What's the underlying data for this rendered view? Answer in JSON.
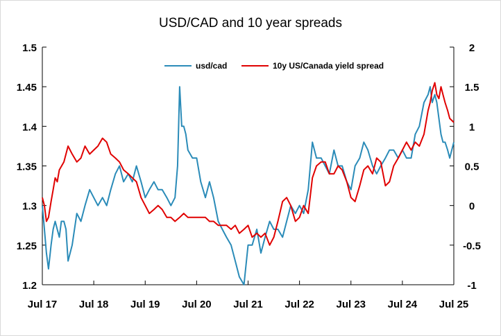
{
  "chart_data": {
    "type": "line",
    "title": "USD/CAD and 10 year spreads",
    "xlabel": "",
    "ylabel": "",
    "x_ticks": [
      "Jul 17",
      "Jul 18",
      "Jul 19",
      "Jul 20",
      "Jul 21",
      "Jul 22",
      "Jul 23",
      "Jul 24",
      "Jul 25"
    ],
    "x_range": [
      2017.5,
      2025.5
    ],
    "y_left": {
      "range": [
        1.2,
        1.5
      ],
      "ticks": [
        "1.2",
        "1.25",
        "1.3",
        "1.35",
        "1.4",
        "1.45",
        "1.5"
      ]
    },
    "y_right": {
      "range": [
        -1,
        2
      ],
      "ticks": [
        "-1",
        "-0.5",
        "0",
        "0.5",
        "1",
        "1.5",
        "2"
      ]
    },
    "grid": false,
    "legend_position": "top",
    "series": [
      {
        "name": "usd/cad",
        "axis": "left",
        "color": "#2a8bb8",
        "x": [
          2017.5,
          2017.54,
          2017.58,
          2017.62,
          2017.67,
          2017.71,
          2017.75,
          2017.79,
          2017.83,
          2017.87,
          2017.92,
          2017.96,
          2018.0,
          2018.08,
          2018.17,
          2018.25,
          2018.33,
          2018.42,
          2018.5,
          2018.58,
          2018.67,
          2018.75,
          2018.83,
          2018.92,
          2019.0,
          2019.08,
          2019.17,
          2019.25,
          2019.33,
          2019.42,
          2019.5,
          2019.58,
          2019.67,
          2019.75,
          2019.83,
          2019.92,
          2020.0,
          2020.08,
          2020.13,
          2020.17,
          2020.21,
          2020.25,
          2020.29,
          2020.33,
          2020.42,
          2020.5,
          2020.58,
          2020.67,
          2020.75,
          2020.83,
          2020.92,
          2021.0,
          2021.08,
          2021.17,
          2021.25,
          2021.33,
          2021.42,
          2021.5,
          2021.58,
          2021.67,
          2021.75,
          2021.83,
          2021.92,
          2022.0,
          2022.08,
          2022.17,
          2022.25,
          2022.33,
          2022.42,
          2022.5,
          2022.58,
          2022.67,
          2022.75,
          2022.83,
          2022.92,
          2023.0,
          2023.08,
          2023.17,
          2023.25,
          2023.33,
          2023.42,
          2023.5,
          2023.58,
          2023.67,
          2023.75,
          2023.83,
          2023.92,
          2024.0,
          2024.08,
          2024.17,
          2024.25,
          2024.33,
          2024.42,
          2024.5,
          2024.58,
          2024.67,
          2024.75,
          2024.83,
          2024.92,
          2025.0,
          2025.04,
          2025.08,
          2025.13,
          2025.17,
          2025.21,
          2025.25,
          2025.29,
          2025.33,
          2025.38,
          2025.42,
          2025.5
        ],
        "y": [
          1.3,
          1.27,
          1.24,
          1.22,
          1.25,
          1.27,
          1.28,
          1.27,
          1.26,
          1.28,
          1.28,
          1.27,
          1.23,
          1.25,
          1.29,
          1.28,
          1.3,
          1.32,
          1.31,
          1.3,
          1.31,
          1.3,
          1.32,
          1.34,
          1.35,
          1.33,
          1.34,
          1.33,
          1.35,
          1.33,
          1.31,
          1.32,
          1.33,
          1.32,
          1.32,
          1.31,
          1.3,
          1.31,
          1.35,
          1.45,
          1.4,
          1.4,
          1.39,
          1.37,
          1.36,
          1.36,
          1.33,
          1.31,
          1.33,
          1.31,
          1.28,
          1.27,
          1.26,
          1.25,
          1.23,
          1.21,
          1.2,
          1.25,
          1.25,
          1.27,
          1.24,
          1.26,
          1.28,
          1.27,
          1.27,
          1.26,
          1.28,
          1.3,
          1.29,
          1.3,
          1.29,
          1.32,
          1.38,
          1.36,
          1.36,
          1.35,
          1.34,
          1.37,
          1.35,
          1.35,
          1.33,
          1.32,
          1.35,
          1.36,
          1.38,
          1.37,
          1.35,
          1.34,
          1.35,
          1.36,
          1.37,
          1.37,
          1.36,
          1.37,
          1.36,
          1.36,
          1.39,
          1.4,
          1.43,
          1.44,
          1.45,
          1.43,
          1.44,
          1.43,
          1.41,
          1.39,
          1.38,
          1.38,
          1.37,
          1.36,
          1.38
        ]
      },
      {
        "name": "10y US/Canada yield spread",
        "axis": "right",
        "color": "#e00000",
        "x": [
          2017.5,
          2017.54,
          2017.58,
          2017.62,
          2017.67,
          2017.71,
          2017.75,
          2017.79,
          2017.83,
          2017.92,
          2018.0,
          2018.08,
          2018.17,
          2018.25,
          2018.33,
          2018.42,
          2018.5,
          2018.58,
          2018.67,
          2018.75,
          2018.83,
          2018.92,
          2019.0,
          2019.08,
          2019.17,
          2019.25,
          2019.33,
          2019.42,
          2019.5,
          2019.58,
          2019.67,
          2019.75,
          2019.83,
          2019.92,
          2020.0,
          2020.08,
          2020.17,
          2020.25,
          2020.33,
          2020.42,
          2020.5,
          2020.58,
          2020.67,
          2020.75,
          2020.83,
          2020.92,
          2021.0,
          2021.08,
          2021.17,
          2021.25,
          2021.33,
          2021.42,
          2021.5,
          2021.58,
          2021.67,
          2021.75,
          2021.83,
          2021.92,
          2022.0,
          2022.08,
          2022.17,
          2022.25,
          2022.33,
          2022.42,
          2022.5,
          2022.58,
          2022.67,
          2022.75,
          2022.83,
          2022.92,
          2023.0,
          2023.08,
          2023.17,
          2023.25,
          2023.33,
          2023.42,
          2023.5,
          2023.58,
          2023.67,
          2023.75,
          2023.83,
          2023.92,
          2024.0,
          2024.08,
          2024.17,
          2024.25,
          2024.33,
          2024.42,
          2024.5,
          2024.58,
          2024.67,
          2024.75,
          2024.83,
          2024.92,
          2025.0,
          2025.04,
          2025.08,
          2025.13,
          2025.17,
          2025.21,
          2025.25,
          2025.29,
          2025.33,
          2025.38,
          2025.42,
          2025.5
        ],
        "y": [
          0.1,
          0.0,
          -0.2,
          -0.15,
          0.05,
          0.2,
          0.35,
          0.3,
          0.45,
          0.55,
          0.75,
          0.65,
          0.55,
          0.6,
          0.75,
          0.65,
          0.7,
          0.75,
          0.85,
          0.8,
          0.65,
          0.6,
          0.55,
          0.45,
          0.4,
          0.35,
          0.3,
          0.1,
          0.0,
          -0.1,
          -0.05,
          0.0,
          -0.05,
          -0.15,
          -0.15,
          -0.2,
          -0.15,
          -0.1,
          -0.15,
          -0.15,
          -0.15,
          -0.15,
          -0.15,
          -0.2,
          -0.2,
          -0.25,
          -0.25,
          -0.25,
          -0.3,
          -0.25,
          -0.35,
          -0.3,
          -0.25,
          -0.4,
          -0.35,
          -0.4,
          -0.35,
          -0.5,
          -0.4,
          -0.2,
          0.05,
          0.1,
          0.0,
          -0.2,
          -0.15,
          0.0,
          -0.1,
          0.35,
          0.5,
          0.55,
          0.55,
          0.4,
          0.4,
          0.5,
          0.45,
          0.3,
          0.1,
          0.05,
          0.25,
          0.45,
          0.5,
          0.4,
          0.6,
          0.55,
          0.25,
          0.3,
          0.5,
          0.6,
          0.7,
          0.8,
          0.7,
          0.8,
          0.75,
          0.9,
          1.2,
          1.3,
          1.45,
          1.55,
          1.4,
          1.35,
          1.5,
          1.4,
          1.3,
          1.2,
          1.1,
          1.05
        ]
      }
    ]
  }
}
